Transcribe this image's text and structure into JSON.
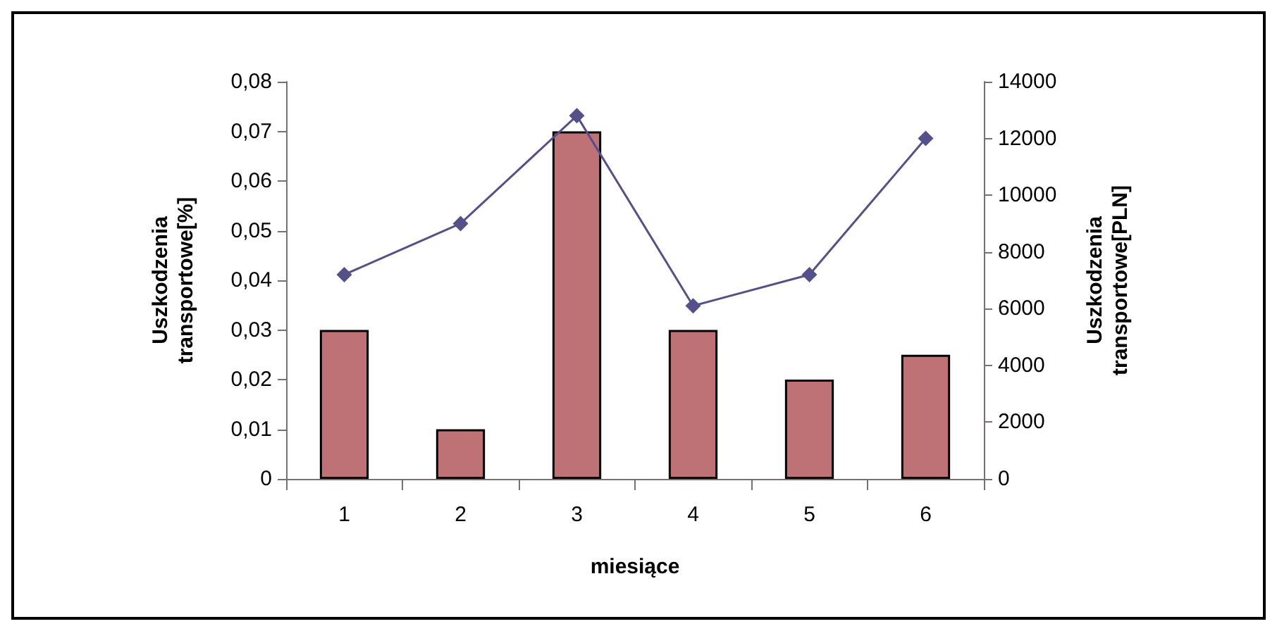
{
  "chart_data": {
    "type": "bar",
    "xlabel": "miesiące",
    "ylabel": "Uszkodzenia\ntransportowe[%]",
    "y2label": "Uszkodzenia\ntransportowe[PLN]",
    "categories": [
      "1",
      "2",
      "3",
      "4",
      "5",
      "6"
    ],
    "series": [
      {
        "color": "#bf7276",
        "values": [
          0.03,
          0.01,
          0.07,
          0.03,
          0.02,
          0.025
        ]
      },
      {
        "type": "line",
        "axis": "y2",
        "color": "#55508a",
        "marker": "diamond",
        "values": [
          7200,
          9000,
          12800,
          6100,
          7200,
          12000
        ]
      }
    ],
    "ylim": [
      0,
      0.08
    ],
    "yticks": [
      {
        "value": 0,
        "label": "0"
      },
      {
        "value": 0.01,
        "label": "0,01"
      },
      {
        "value": 0.02,
        "label": "0,02"
      },
      {
        "value": 0.03,
        "label": "0,03"
      },
      {
        "value": 0.04,
        "label": "0,04"
      },
      {
        "value": 0.05,
        "label": "0,05"
      },
      {
        "value": 0.06,
        "label": "0,06"
      },
      {
        "value": 0.07,
        "label": "0,07"
      },
      {
        "value": 0.08,
        "label": "0,08"
      }
    ],
    "y2lim": [
      0,
      14000
    ],
    "y2ticks": [
      0,
      2000,
      4000,
      6000,
      8000,
      10000,
      12000,
      14000
    ],
    "grid": false
  }
}
